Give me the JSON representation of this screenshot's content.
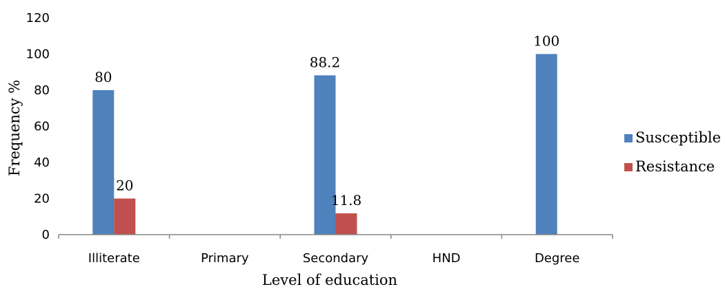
{
  "chart_data": {
    "type": "bar",
    "title": "",
    "xlabel": "Level of education",
    "ylabel": "Frequency %",
    "ylim": [
      0,
      120
    ],
    "yticks": [
      0,
      20,
      40,
      60,
      80,
      100,
      120
    ],
    "grid": false,
    "legend_position": "right",
    "categories": [
      "Illiterate",
      "Primary",
      "Secondary",
      "HND",
      "Degree"
    ],
    "series": [
      {
        "name": "Susceptible",
        "color": "#4F81BD",
        "values": [
          80,
          null,
          88.2,
          null,
          100
        ],
        "labels": [
          "80",
          "",
          "88.2",
          "",
          "100"
        ]
      },
      {
        "name": "Resistance",
        "color": "#C0504D",
        "values": [
          20,
          null,
          11.8,
          null,
          null
        ],
        "labels": [
          "20",
          "",
          "11.8",
          "",
          ""
        ]
      }
    ]
  }
}
